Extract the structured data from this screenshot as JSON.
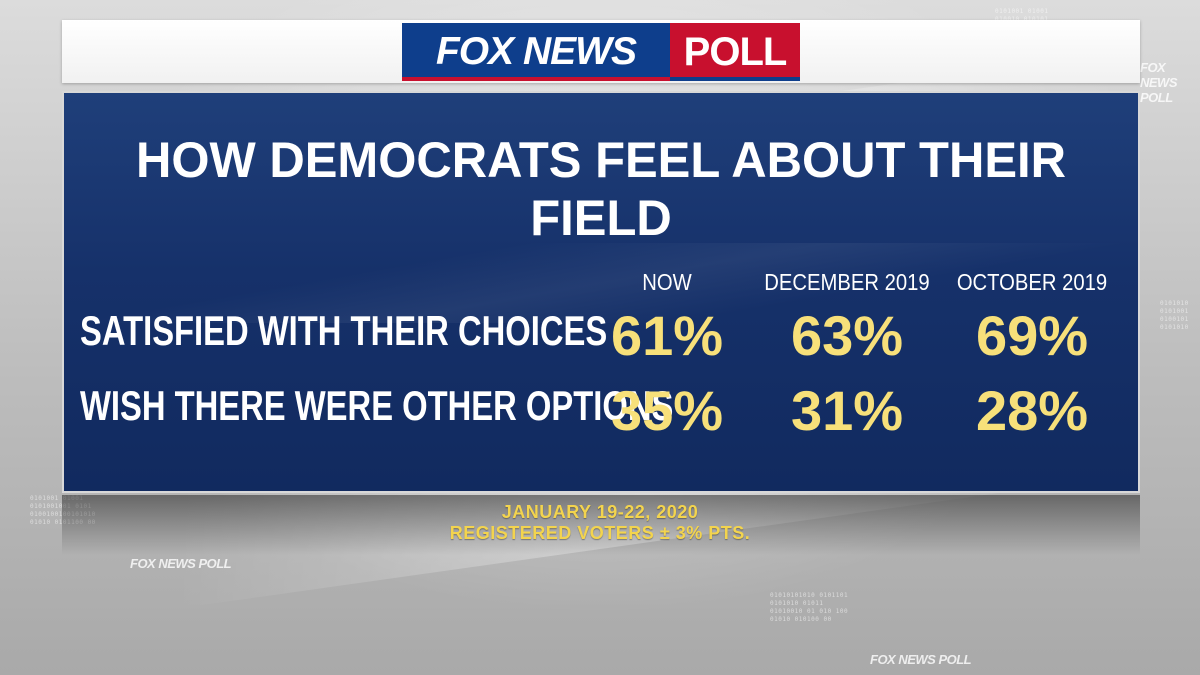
{
  "logo": {
    "brand": "FOX NEWS",
    "poll": "POLL"
  },
  "background": {
    "watermark": "FOX NEWS POLL"
  },
  "chart_data": {
    "type": "table",
    "title": "HOW DEMOCRATS FEEL ABOUT THEIR FIELD",
    "columns": [
      "NOW",
      "DECEMBER 2019",
      "OCTOBER 2019"
    ],
    "rows": [
      {
        "label": "SATISFIED WITH THEIR CHOICES",
        "values": [
          "61%",
          "63%",
          "69%"
        ]
      },
      {
        "label": "WISH THERE WERE OTHER OPTIONS",
        "values": [
          "35%",
          "31%",
          "28%"
        ]
      }
    ],
    "series": [
      {
        "name": "SATISFIED WITH THEIR CHOICES",
        "values": [
          61,
          63,
          69
        ]
      },
      {
        "name": "WISH THERE WERE OTHER OPTIONS",
        "values": [
          35,
          31,
          28
        ]
      }
    ]
  },
  "footer": {
    "dates": "JANUARY 19-22, 2020",
    "sample": "REGISTERED VOTERS ± 3% PTS."
  },
  "colors": {
    "panel": "#16316a",
    "value_text": "#f7e07a",
    "footer_text": "#f3d44e",
    "fox_blue": "#0e3e8c",
    "fox_red": "#c8102e"
  }
}
